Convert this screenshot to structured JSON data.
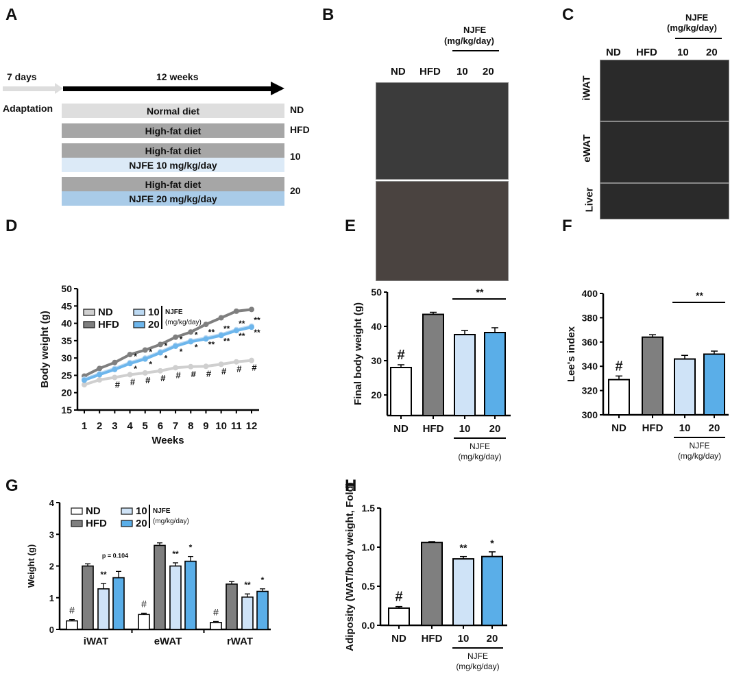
{
  "panel_labels": [
    "A",
    "B",
    "C",
    "D",
    "E",
    "F",
    "G",
    "H"
  ],
  "panelA": {
    "adaptation_days": "7 days",
    "duration": "12 weeks",
    "adaptation": "Adaptation",
    "rows": [
      {
        "bars": [
          "Normal diet"
        ],
        "label": "ND"
      },
      {
        "bars": [
          "High-fat diet"
        ],
        "label": "HFD"
      },
      {
        "bars": [
          "High-fat diet",
          "NJFE 10 mg/kg/day"
        ],
        "label": "10"
      },
      {
        "bars": [
          "High-fat diet",
          "NJFE 20 mg/kg/day"
        ],
        "label": "20"
      }
    ]
  },
  "panelB": {
    "groups": [
      "ND",
      "HFD",
      "10",
      "20"
    ],
    "njfe": "NJFE",
    "unit": "(mg/kg/day)"
  },
  "panelC": {
    "groups": [
      "ND",
      "HFD",
      "10",
      "20"
    ],
    "njfe": "NJFE",
    "unit": "(mg/kg/day)",
    "rows": [
      "iWAT",
      "eWAT",
      "Liver"
    ]
  },
  "colors": {
    "ND": "#ffffff",
    "HFD": "#7f7f7f",
    "10": "#cfe3f7",
    "20": "#5aaee8",
    "ND_line": "#cfcfcf",
    "10_line": "#bcd9f2",
    "20_line": "#6db6ec"
  },
  "chart_data": [
    {
      "id": "D",
      "type": "line",
      "xlabel": "Weeks",
      "ylabel": "Body weight (g)",
      "ylim": [
        15,
        50
      ],
      "yticks": [
        15,
        20,
        25,
        30,
        35,
        40,
        45,
        50
      ],
      "x": [
        1,
        2,
        3,
        4,
        5,
        6,
        7,
        8,
        9,
        10,
        11,
        12
      ],
      "legend": [
        "ND",
        "HFD",
        "10",
        "20"
      ],
      "legend_note": [
        "NJFE",
        "(mg/kg/day)"
      ],
      "series": [
        {
          "name": "ND",
          "values": [
            22.3,
            23.7,
            24.4,
            25.2,
            25.7,
            26.3,
            27.2,
            27.5,
            27.6,
            28.2,
            28.9,
            29.3
          ]
        },
        {
          "name": "HFD",
          "values": [
            24.8,
            27.0,
            28.7,
            31.0,
            32.3,
            33.9,
            36.0,
            37.5,
            39.7,
            41.6,
            43.5,
            44.0
          ]
        },
        {
          "name": "10",
          "values": [
            23.9,
            25.5,
            27.0,
            28.7,
            30.0,
            31.8,
            33.7,
            35.0,
            35.8,
            36.8,
            38.2,
            39.2
          ]
        },
        {
          "name": "20",
          "values": [
            23.6,
            25.2,
            26.7,
            28.4,
            29.7,
            31.5,
            33.4,
            34.7,
            35.5,
            36.5,
            37.9,
            38.9
          ]
        }
      ],
      "annotations": {
        "hash_weeks": [
          3,
          4,
          5,
          6,
          7,
          8,
          9,
          10,
          11,
          12
        ],
        "hash": "#",
        "star_weeks": [
          4,
          5,
          6,
          7,
          8,
          9,
          10,
          11,
          12
        ],
        "stars": [
          "*",
          "*",
          "*",
          "*",
          "*",
          "**",
          "**",
          "**",
          "**"
        ]
      }
    },
    {
      "id": "E",
      "type": "bar",
      "ylabel": "Final body weight (g)",
      "ylim": [
        14,
        50
      ],
      "yticks": [
        20,
        30,
        40,
        50
      ],
      "categories": [
        "ND",
        "HFD",
        "10",
        "20"
      ],
      "values": [
        28.0,
        43.5,
        37.6,
        38.2
      ],
      "sem": [
        0.8,
        0.6,
        1.2,
        1.4
      ],
      "marks": [
        "#",
        "",
        "",
        ""
      ],
      "bracket": "**",
      "group_label": [
        "NJFE",
        "(mg/kg/day)"
      ]
    },
    {
      "id": "F",
      "type": "bar",
      "ylabel": "Lee's index",
      "ylim": [
        300,
        400
      ],
      "yticks": [
        300,
        320,
        340,
        360,
        380,
        400
      ],
      "categories": [
        "ND",
        "HFD",
        "10",
        "20"
      ],
      "values": [
        329,
        364,
        346,
        350
      ],
      "sem": [
        3,
        2,
        3,
        2.5
      ],
      "marks": [
        "#",
        "",
        "",
        ""
      ],
      "bracket": "**",
      "group_label": [
        "NJFE",
        "(mg/kg/day)"
      ]
    },
    {
      "id": "G",
      "type": "bar",
      "ylabel": "Weight (g)",
      "ylim": [
        0,
        4
      ],
      "yticks": [
        0,
        1,
        2,
        3,
        4
      ],
      "categories": [
        "iWAT",
        "eWAT",
        "rWAT"
      ],
      "legend": [
        "ND",
        "HFD",
        "10",
        "20"
      ],
      "legend_note": [
        "NJFE",
        "(mg/kg/day)"
      ],
      "series": [
        {
          "name": "ND",
          "values": [
            0.27,
            0.47,
            0.22
          ],
          "sem": [
            0.04,
            0.04,
            0.03
          ]
        },
        {
          "name": "HFD",
          "values": [
            2.0,
            2.65,
            1.43
          ],
          "sem": [
            0.07,
            0.08,
            0.08
          ]
        },
        {
          "name": "10",
          "values": [
            1.28,
            2.0,
            1.02
          ],
          "sem": [
            0.17,
            0.1,
            0.1
          ]
        },
        {
          "name": "20",
          "values": [
            1.63,
            2.15,
            1.2
          ],
          "sem": [
            0.2,
            0.15,
            0.08
          ]
        }
      ],
      "marks": [
        [
          "#",
          "",
          "**",
          "p = 0.104"
        ],
        [
          "#",
          "",
          "**",
          "*"
        ],
        [
          "#",
          "",
          "**",
          "*"
        ]
      ]
    },
    {
      "id": "H",
      "type": "bar",
      "ylabel": "Adiposity (WAT/body weight, Fold)",
      "ylim": [
        0,
        1.5
      ],
      "yticks": [
        "0.0",
        "0.5",
        "1.0",
        "1.5"
      ],
      "categories": [
        "ND",
        "HFD",
        "10",
        "20"
      ],
      "values": [
        0.22,
        1.06,
        0.85,
        0.88
      ],
      "sem": [
        0.02,
        0.01,
        0.03,
        0.06
      ],
      "marks": [
        "#",
        "",
        "**",
        "*"
      ],
      "group_label": [
        "NJFE",
        "(mg/kg/day)"
      ]
    }
  ]
}
